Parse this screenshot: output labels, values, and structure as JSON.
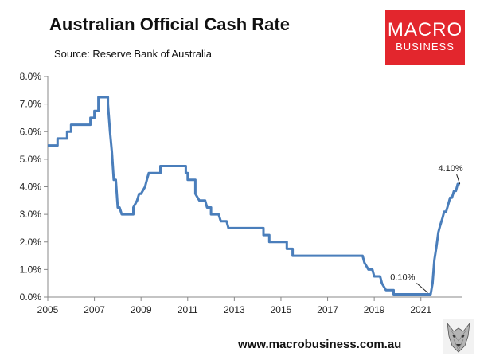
{
  "title": "Australian Official Cash Rate",
  "subtitle": "Source: Reserve Bank of Australia",
  "logo": {
    "line1": "MACRO",
    "line2": "BUSINESS"
  },
  "website": "www.macrobusiness.com.au",
  "colors": {
    "line": "#4a7ebb",
    "axis": "#888888",
    "logo_bg": "#e3262d"
  },
  "chart_data": {
    "type": "line",
    "title": "Australian Official Cash Rate",
    "xlabel": "",
    "ylabel": "",
    "xlim": [
      2005,
      2022.75
    ],
    "ylim": [
      0,
      8
    ],
    "grid": false,
    "legend": "none",
    "x_ticks": [
      2005,
      2007,
      2009,
      2011,
      2013,
      2015,
      2017,
      2019,
      2021
    ],
    "x_tick_labels": [
      "2005",
      "2007",
      "2009",
      "2011",
      "2013",
      "2015",
      "2017",
      "2019",
      "2021"
    ],
    "y_ticks": [
      0,
      1,
      2,
      3,
      4,
      5,
      6,
      7,
      8
    ],
    "y_tick_labels": [
      "0.0%",
      "1.0%",
      "2.0%",
      "3.0%",
      "4.0%",
      "5.0%",
      "6.0%",
      "7.0%",
      "8.0%"
    ],
    "series": [
      {
        "x": [
          2005.0,
          2005.25,
          2005.25,
          2005.42,
          2005.42,
          2005.58,
          2005.58,
          2005.83,
          2005.83,
          2006.0,
          2006.0,
          2006.42,
          2006.42,
          2006.58,
          2006.58,
          2006.83,
          2006.83,
          2007.0,
          2007.0,
          2007.17,
          2007.17,
          2007.58,
          2007.58,
          2007.67,
          2007.75,
          2007.83,
          2007.92,
          2008.0,
          2008.08,
          2008.17,
          2008.17,
          2008.25,
          2008.25,
          2008.33,
          2008.33,
          2008.67,
          2008.67,
          2008.83,
          2008.92,
          2009.0,
          2009.17,
          2009.25,
          2009.33,
          2009.42,
          2009.5,
          2009.58,
          2009.67,
          2009.75,
          2009.83,
          2009.83,
          2010.0,
          2010.0,
          2010.92,
          2010.92,
          2011.0,
          2011.0,
          2011.33,
          2011.33,
          2011.5,
          2011.58,
          2011.67,
          2011.75,
          2011.83,
          2012.0,
          2012.0,
          2012.17,
          2012.25,
          2012.33,
          2012.42,
          2012.5,
          2012.67,
          2012.75,
          2012.83,
          2012.92,
          2013.0,
          2013.08,
          2013.17,
          2013.25,
          2014.25,
          2014.25,
          2014.5,
          2014.5,
          2015.25,
          2015.25,
          2015.5,
          2015.5,
          2018.5,
          2018.58,
          2018.75,
          2018.92,
          2019.0,
          2019.08,
          2019.25,
          2019.33,
          2019.5,
          2019.58,
          2019.83,
          2019.83,
          2020.0,
          2020.0,
          2021.25,
          2021.33,
          2021.42,
          2021.5,
          2021.58,
          2021.67,
          2021.75,
          2021.83,
          2021.92,
          2022.0,
          2022.08,
          2022.17,
          2022.25,
          2022.33,
          2022.42,
          2022.5,
          2022.58,
          2022.67
        ],
        "y": [
          5.5,
          5.5,
          5.5,
          5.5,
          5.75,
          5.75,
          5.75,
          5.75,
          6.0,
          6.0,
          6.25,
          6.25,
          6.25,
          6.25,
          6.25,
          6.25,
          6.5,
          6.5,
          6.75,
          6.75,
          7.25,
          7.25,
          7.0,
          6.0,
          5.25,
          4.25,
          4.25,
          3.25,
          3.25,
          3.0,
          3.0,
          3.0,
          3.0,
          3.0,
          3.0,
          3.0,
          3.25,
          3.5,
          3.75,
          3.75,
          4.0,
          4.25,
          4.5,
          4.5,
          4.5,
          4.5,
          4.5,
          4.5,
          4.5,
          4.75,
          4.75,
          4.75,
          4.75,
          4.5,
          4.5,
          4.25,
          4.25,
          3.75,
          3.5,
          3.5,
          3.5,
          3.5,
          3.25,
          3.25,
          3.0,
          3.0,
          3.0,
          3.0,
          2.75,
          2.75,
          2.75,
          2.5,
          2.5,
          2.5,
          2.5,
          2.5,
          2.5,
          2.5,
          2.5,
          2.25,
          2.25,
          2.0,
          2.0,
          1.75,
          1.75,
          1.5,
          1.5,
          1.25,
          1.0,
          1.0,
          0.75,
          0.75,
          0.75,
          0.5,
          0.25,
          0.25,
          0.25,
          0.1,
          0.1,
          0.1,
          0.1,
          0.1,
          0.1,
          0.5,
          1.35,
          1.85,
          2.35,
          2.6,
          2.85,
          3.1,
          3.1,
          3.35,
          3.6,
          3.6,
          3.85,
          3.85,
          4.1,
          4.1
        ]
      }
    ],
    "annotations": [
      {
        "text": "0.10%",
        "x": 2021.33,
        "y": 0.1
      },
      {
        "text": "4.10%",
        "x": 2022.67,
        "y": 4.1
      }
    ]
  }
}
